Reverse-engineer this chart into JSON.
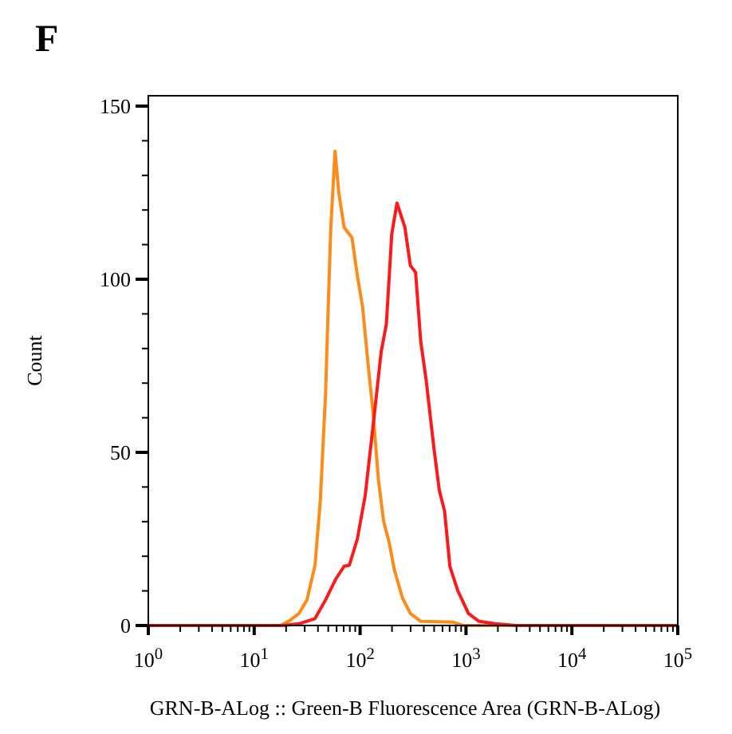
{
  "chart_data": {
    "type": "line",
    "title": "F",
    "xlabel": "GRN-B-ALog :: Green-B Fluorescence Area (GRN-B-ALog)",
    "ylabel": "Count",
    "log": "x",
    "xlim": [
      1,
      100000
    ],
    "ylim": [
      0,
      153
    ],
    "xticks": [
      {
        "value": 1,
        "label": "10$^{0}$"
      },
      {
        "value": 2,
        "label": null
      },
      {
        "value": 3,
        "label": null
      },
      {
        "value": 4,
        "label": null
      },
      {
        "value": 5,
        "label": null
      },
      {
        "value": 6,
        "label": null
      },
      {
        "value": 7,
        "label": null
      },
      {
        "value": 8,
        "label": null
      },
      {
        "value": 9,
        "label": null
      },
      {
        "value": 10,
        "label": "10$^{1}$"
      },
      {
        "value": 20,
        "label": null
      },
      {
        "value": 30,
        "label": null
      },
      {
        "value": 40,
        "label": null
      },
      {
        "value": 50,
        "label": null
      },
      {
        "value": 60,
        "label": null
      },
      {
        "value": 70,
        "label": null
      },
      {
        "value": 80,
        "label": null
      },
      {
        "value": 90,
        "label": null
      },
      {
        "value": 100,
        "label": "10$^{2}$"
      },
      {
        "value": 200,
        "label": null
      },
      {
        "value": 300,
        "label": null
      },
      {
        "value": 400,
        "label": null
      },
      {
        "value": 500,
        "label": null
      },
      {
        "value": 600,
        "label": null
      },
      {
        "value": 700,
        "label": null
      },
      {
        "value": 800,
        "label": null
      },
      {
        "value": 900,
        "label": null
      },
      {
        "value": 1000,
        "label": "10$^{3}$"
      },
      {
        "value": 2000,
        "label": null
      },
      {
        "value": 3000,
        "label": null
      },
      {
        "value": 4000,
        "label": null
      },
      {
        "value": 5000,
        "label": null
      },
      {
        "value": 6000,
        "label": null
      },
      {
        "value": 7000,
        "label": null
      },
      {
        "value": 8000,
        "label": null
      },
      {
        "value": 9000,
        "label": null
      },
      {
        "value": 10000,
        "label": "10$^{4}$"
      },
      {
        "value": 20000,
        "label": null
      },
      {
        "value": 30000,
        "label": null
      },
      {
        "value": 40000,
        "label": null
      },
      {
        "value": 50000,
        "label": null
      },
      {
        "value": 60000,
        "label": null
      },
      {
        "value": 70000,
        "label": null
      },
      {
        "value": 80000,
        "label": null
      },
      {
        "value": 90000,
        "label": null
      },
      {
        "value": 100000,
        "label": "10$^{5}$"
      }
    ],
    "yticks": [
      0,
      {
        "value": 10,
        "label": null
      },
      {
        "value": 20,
        "label": null
      },
      {
        "value": 30,
        "label": null
      },
      {
        "value": 40,
        "label": null
      },
      50,
      {
        "value": 60,
        "label": null
      },
      {
        "value": 70,
        "label": null
      },
      {
        "value": 80,
        "label": null
      },
      {
        "value": 90,
        "label": null
      },
      100,
      {
        "value": 110,
        "label": null
      },
      {
        "value": 120,
        "label": null
      },
      {
        "value": 130,
        "label": null
      },
      {
        "value": 140,
        "label": null
      },
      150
    ],
    "grid": false,
    "marker": "none",
    "line_style": "solid",
    "series": [
      {
        "color": "#ff8c1a",
        "x": [
          1,
          17.7,
          21.1,
          26.5,
          31.5,
          37.5,
          42.1,
          47.2,
          50,
          52.9,
          58,
          62.9,
          70.6,
          83.9,
          94.2,
          105.6,
          118.5,
          133,
          149,
          167,
          188,
          211,
          251,
          298,
          374,
          746,
          940,
          100000
        ],
        "values": [
          0,
          0,
          1.2,
          3.5,
          7.4,
          17.4,
          36,
          67,
          92,
          115,
          137,
          125,
          115,
          112,
          101,
          92,
          76,
          61,
          42,
          30,
          24,
          16,
          8,
          3.5,
          1.2,
          1,
          0,
          0
        ]
      },
      {
        "color": "#ff1a1a",
        "x": [
          1,
          18.8,
          26.5,
          37.5,
          47.2,
          59.4,
          70.6,
          79.1,
          94.2,
          111.7,
          133,
          158,
          177,
          199,
          223,
          265,
          298,
          334,
          374,
          420,
          499,
          560,
          628,
          705,
          838,
          1054,
          1327,
          1875,
          2970,
          100000
        ],
        "values": [
          0,
          0,
          0.5,
          2,
          7.4,
          13.6,
          17.1,
          17.4,
          25,
          37.5,
          58,
          79,
          87,
          113,
          122,
          115,
          104,
          102,
          82,
          71,
          51,
          39,
          33,
          17,
          10,
          3.5,
          1.2,
          0.5,
          0,
          0
        ]
      }
    ]
  }
}
